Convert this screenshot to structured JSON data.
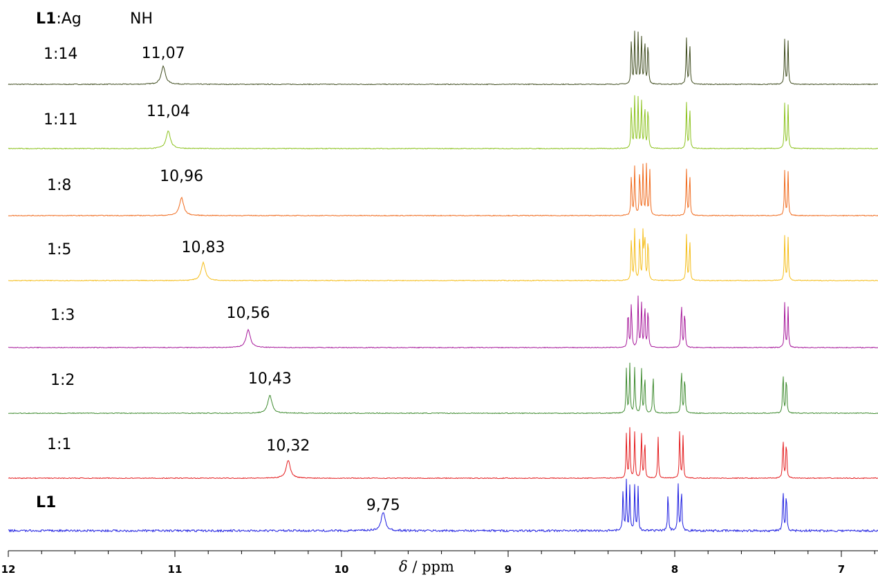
{
  "header": {
    "ratio_bold": "L1",
    "ratio_rest": ":Ag",
    "nh": "NH"
  },
  "axis": {
    "xlabel_symbol": "δ",
    "xlabel_unit": " / ppm",
    "ticks": [
      "12",
      "11",
      "10",
      "9",
      "8",
      "7"
    ]
  },
  "chart_data": {
    "type": "line",
    "title": "",
    "xlabel": "δ / ppm",
    "ylabel": "",
    "xlim": [
      12.0,
      6.78
    ],
    "x_reversed": true,
    "grid": false,
    "legend": "none",
    "major_ticks": [
      12,
      11,
      10,
      9,
      8,
      7
    ],
    "series": [
      {
        "name": "1:14",
        "bold": false,
        "color": "#3d4a1c",
        "nh_shift": 11.07,
        "nh_label": "11,07",
        "aromatic_peaks": [
          [
            8.26,
            0.95
          ],
          [
            8.24,
            1.0
          ],
          [
            8.22,
            0.95
          ],
          [
            8.2,
            0.95
          ],
          [
            8.18,
            0.95
          ],
          [
            8.16,
            0.9
          ],
          [
            7.93,
            0.9
          ],
          [
            7.91,
            0.85
          ],
          [
            7.34,
            0.85
          ],
          [
            7.32,
            0.85
          ]
        ]
      },
      {
        "name": "1:11",
        "bold": false,
        "color": "#8cc21e",
        "nh_shift": 11.04,
        "nh_label": "11,04",
        "aromatic_peaks": [
          [
            8.26,
            0.9
          ],
          [
            8.24,
            1.0
          ],
          [
            8.22,
            0.95
          ],
          [
            8.2,
            0.95
          ],
          [
            8.18,
            0.9
          ],
          [
            8.16,
            0.9
          ],
          [
            7.93,
            0.9
          ],
          [
            7.91,
            0.85
          ],
          [
            7.34,
            0.85
          ],
          [
            7.32,
            0.85
          ]
        ]
      },
      {
        "name": "1:8",
        "bold": false,
        "color": "#f06a1c",
        "nh_shift": 10.96,
        "nh_label": "10,96",
        "aromatic_peaks": [
          [
            8.26,
            0.85
          ],
          [
            8.24,
            0.95
          ],
          [
            8.21,
            0.95
          ],
          [
            8.19,
            1.0
          ],
          [
            8.17,
            0.95
          ],
          [
            8.15,
            0.9
          ],
          [
            7.93,
            0.9
          ],
          [
            7.91,
            0.85
          ],
          [
            7.34,
            0.85
          ],
          [
            7.32,
            0.85
          ]
        ]
      },
      {
        "name": "1:5",
        "bold": false,
        "color": "#f5bd18",
        "nh_shift": 10.83,
        "nh_label": "10,83",
        "aromatic_peaks": [
          [
            8.26,
            0.9
          ],
          [
            8.24,
            1.0
          ],
          [
            8.21,
            0.95
          ],
          [
            8.19,
            0.95
          ],
          [
            8.18,
            0.95
          ],
          [
            8.16,
            0.9
          ],
          [
            7.93,
            0.9
          ],
          [
            7.91,
            0.85
          ],
          [
            7.34,
            0.85
          ],
          [
            7.32,
            0.85
          ]
        ]
      },
      {
        "name": "1:3",
        "bold": false,
        "color": "#a6179a",
        "nh_shift": 10.56,
        "nh_label": "10,56",
        "aromatic_peaks": [
          [
            8.28,
            0.8
          ],
          [
            8.26,
            0.95
          ],
          [
            8.22,
            0.95
          ],
          [
            8.2,
            0.9
          ],
          [
            8.18,
            0.9
          ],
          [
            8.16,
            0.85
          ],
          [
            7.96,
            0.95
          ],
          [
            7.94,
            0.8
          ],
          [
            7.34,
            0.85
          ],
          [
            7.32,
            0.8
          ]
        ]
      },
      {
        "name": "1:2",
        "bold": false,
        "color": "#3d8a2e",
        "nh_shift": 10.43,
        "nh_label": "10,43",
        "aromatic_peaks": [
          [
            8.29,
            0.85
          ],
          [
            8.27,
            0.95
          ],
          [
            8.24,
            0.9
          ],
          [
            8.2,
            0.9
          ],
          [
            8.18,
            0.8
          ],
          [
            8.13,
            0.8
          ],
          [
            7.96,
            0.95
          ],
          [
            7.94,
            0.8
          ],
          [
            7.35,
            0.85
          ],
          [
            7.33,
            0.8
          ]
        ]
      },
      {
        "name": "1:1",
        "bold": false,
        "color": "#e41a1c",
        "nh_shift": 10.32,
        "nh_label": "10,32",
        "aromatic_peaks": [
          [
            8.29,
            0.85
          ],
          [
            8.27,
            0.95
          ],
          [
            8.24,
            0.9
          ],
          [
            8.2,
            0.9
          ],
          [
            8.18,
            0.8
          ],
          [
            8.1,
            0.8
          ],
          [
            7.97,
            0.95
          ],
          [
            7.95,
            0.8
          ],
          [
            7.35,
            0.85
          ],
          [
            7.33,
            0.8
          ]
        ]
      },
      {
        "name": "L1",
        "bold": true,
        "color": "#1a1ae0",
        "nh_shift": 9.75,
        "nh_label": "9,75",
        "aromatic_peaks": [
          [
            8.31,
            0.85
          ],
          [
            8.29,
            0.95
          ],
          [
            8.27,
            0.85
          ],
          [
            8.24,
            0.9
          ],
          [
            8.22,
            0.85
          ],
          [
            8.04,
            0.8
          ],
          [
            7.98,
            0.95
          ],
          [
            7.96,
            0.85
          ],
          [
            7.35,
            0.85
          ],
          [
            7.33,
            0.8
          ]
        ]
      }
    ]
  }
}
